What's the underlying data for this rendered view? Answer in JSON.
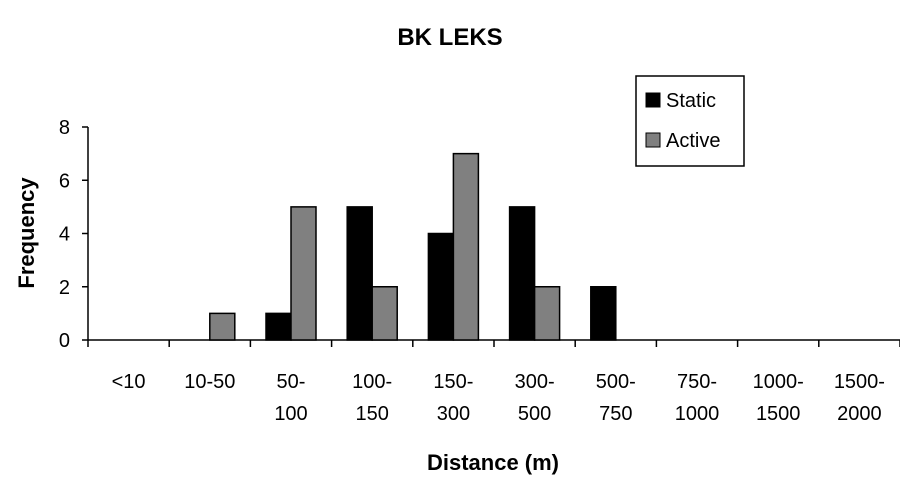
{
  "chart_data": {
    "type": "bar",
    "title": "BK LEKS",
    "xlabel": "Distance (m)",
    "ylabel": "Frequency",
    "categories": [
      [
        "<10"
      ],
      [
        "10-50"
      ],
      [
        "50-",
        "100"
      ],
      [
        "100-",
        "150"
      ],
      [
        "150-",
        "300"
      ],
      [
        "300-",
        "500"
      ],
      [
        "500-",
        "750"
      ],
      [
        "750-",
        "1000"
      ],
      [
        "1000-",
        "1500"
      ],
      [
        "1500-",
        "2000"
      ]
    ],
    "ylim": [
      0,
      8
    ],
    "yticks": [
      0,
      2,
      4,
      6,
      8
    ],
    "grid": false,
    "legend_position": "top-right",
    "series": [
      {
        "name": "Static",
        "color": "#000000",
        "values": [
          0,
          0,
          1,
          5,
          4,
          5,
          2,
          0,
          0,
          0
        ]
      },
      {
        "name": "Active",
        "color": "#808080",
        "values": [
          0,
          1,
          5,
          2,
          7,
          2,
          0,
          0,
          0,
          0
        ]
      }
    ]
  }
}
